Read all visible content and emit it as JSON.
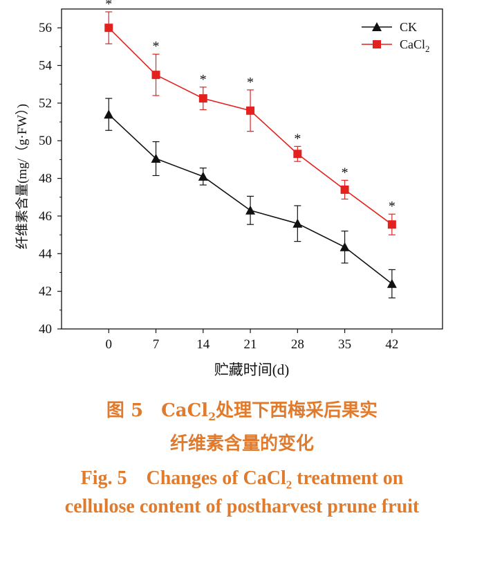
{
  "chart_data": {
    "type": "line",
    "xlabel": "贮藏时间(d)",
    "ylabel": "纤维素含量(mg/（g·FW）)",
    "x": [
      0,
      7,
      14,
      21,
      28,
      35,
      42
    ],
    "x_ticks": [
      "0",
      "7",
      "14",
      "21",
      "28",
      "35",
      "42"
    ],
    "ylim": [
      40,
      57
    ],
    "y_ticks": [
      "40",
      "42",
      "44",
      "46",
      "48",
      "50",
      "52",
      "54",
      "56"
    ],
    "grid": false,
    "legend_position": "top-right",
    "series": [
      {
        "name": "CK",
        "color": "#111111",
        "marker": "triangle",
        "values": [
          51.4,
          49.05,
          48.1,
          46.3,
          45.6,
          44.35,
          42.4
        ],
        "errors": [
          0.85,
          0.9,
          0.45,
          0.75,
          0.95,
          0.85,
          0.75
        ]
      },
      {
        "name": "CaCl",
        "name_sub": "2",
        "color": "#e3211f",
        "marker": "square",
        "values": [
          56.0,
          53.5,
          52.25,
          51.6,
          49.3,
          47.4,
          45.55
        ],
        "errors": [
          0.85,
          1.1,
          0.6,
          1.1,
          0.4,
          0.5,
          0.55
        ],
        "significance": [
          "*",
          "*",
          "*",
          "*",
          "*",
          "*",
          "*"
        ]
      }
    ]
  },
  "caption": {
    "cn_line1_pre": "图 5　CaCl",
    "cn_line1_sub": "2",
    "cn_line1_post": "处理下西梅采后果实",
    "cn_line2": "纤维素含量的变化",
    "en_line1_pre": "Fig. 5　Changes of CaCl",
    "en_line1_sub": "2",
    "en_line1_post": " treatment on",
    "en_line2": "cellulose content of postharvest prune fruit",
    "color": "#e07b2e"
  }
}
